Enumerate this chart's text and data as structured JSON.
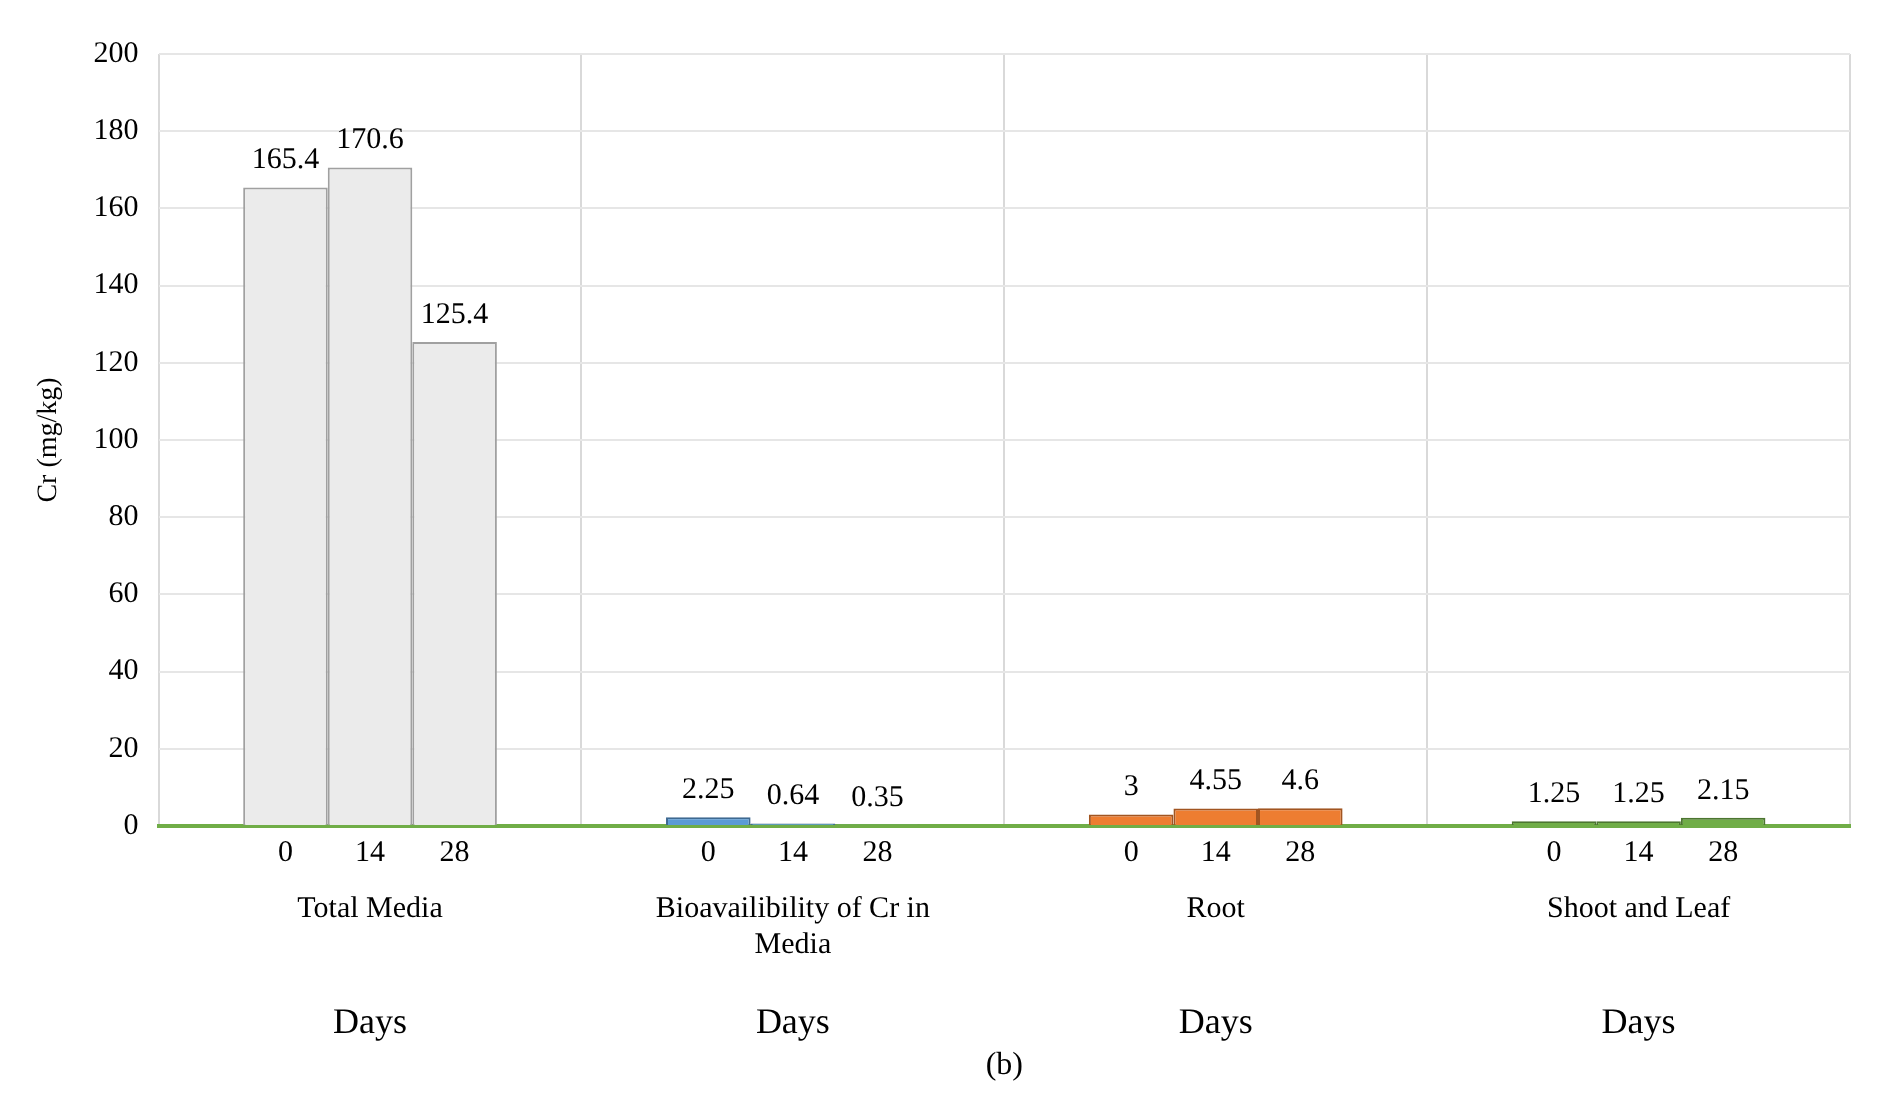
{
  "chart_data": {
    "type": "bar",
    "categories": [
      "Total Media",
      "Bioavailibility of Cr in Media",
      "Root",
      "Shoot and Leaf"
    ],
    "series": [
      {
        "name": "0",
        "colors": [
          "#ebebeb",
          "#5b9bd5",
          "#ed7d31",
          "#70ad47"
        ],
        "values": [
          165.4,
          2.25,
          3,
          1.25
        ]
      },
      {
        "name": "14",
        "colors": [
          "#ebebeb",
          "#5b9bd5",
          "#ed7d31",
          "#70ad47"
        ],
        "values": [
          170.6,
          0.64,
          4.55,
          1.25
        ]
      },
      {
        "name": "28",
        "colors": [
          "#ebebeb",
          "#5b9bd5",
          "#ed7d31",
          "#70ad47"
        ],
        "values": [
          125.4,
          0.35,
          4.6,
          2.15
        ]
      }
    ],
    "ylabel": "Cr (mg/kg)",
    "xlabel": "Days",
    "ylim": [
      0,
      200
    ],
    "yticks": [
      0,
      20,
      40,
      60,
      80,
      100,
      120,
      140,
      160,
      180,
      200
    ],
    "grid": true,
    "legend": false,
    "data_labels": true,
    "annotations": [
      "(b)"
    ]
  }
}
